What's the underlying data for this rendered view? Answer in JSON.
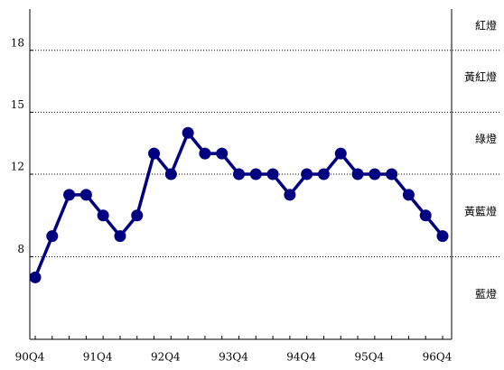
{
  "chart_data": {
    "type": "line",
    "categories": [
      "90Q4",
      null,
      null,
      null,
      "91Q4",
      null,
      null,
      null,
      "92Q4",
      null,
      null,
      null,
      "93Q4",
      null,
      null,
      null,
      "94Q4",
      null,
      null,
      null,
      "95Q4",
      null,
      null,
      null,
      "96Q4"
    ],
    "series": [
      {
        "color": "#000080",
        "values": [
          7,
          9,
          11,
          11,
          10,
          9,
          10,
          13,
          12,
          14,
          13,
          13,
          12,
          12,
          12,
          11,
          12,
          12,
          13,
          12,
          12,
          12,
          11,
          10,
          9
        ]
      }
    ],
    "ylim": [
      4,
      20
    ],
    "yticks": [
      8,
      12,
      15,
      18
    ],
    "grid": true,
    "zones": [
      "藍燈",
      "黃藍燈",
      "綠燈",
      "黃紅燈",
      "紅燈"
    ]
  }
}
